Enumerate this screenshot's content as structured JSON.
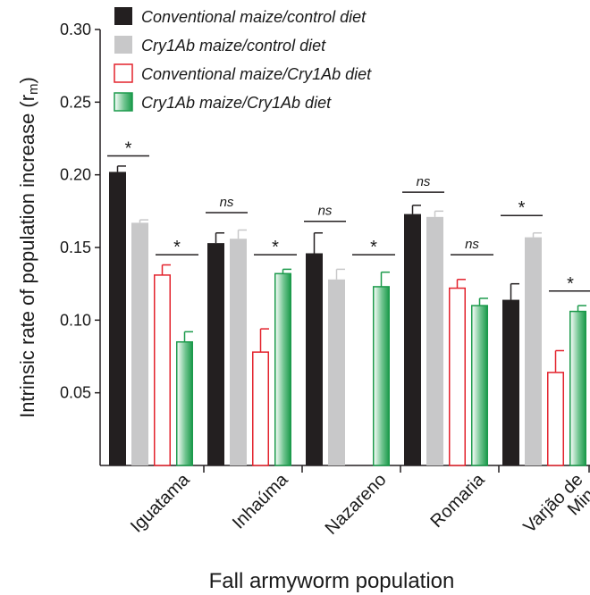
{
  "chart_data": {
    "type": "bar",
    "xlabel": "Fall armyworm population",
    "ylabel_main": "Intrinsic rate of population increase (r",
    "ylabel_sub": "m",
    "ylabel_close": ")",
    "ylim": [
      0,
      0.3
    ],
    "yticks": [
      "0.05",
      "0.10",
      "0.15",
      "0.20",
      "0.25",
      "0.30"
    ],
    "ytick_values": [
      0.05,
      0.1,
      0.15,
      0.2,
      0.25,
      0.3
    ],
    "grid": false,
    "legend_position": "top",
    "categories": [
      {
        "lines": [
          "Iguatama"
        ]
      },
      {
        "lines": [
          "Inhaúma"
        ]
      },
      {
        "lines": [
          "Nazareno"
        ]
      },
      {
        "lines": [
          "Romaria"
        ]
      },
      {
        "lines": [
          "Varjão de",
          "Minas"
        ]
      }
    ],
    "series": [
      {
        "name": "Conventional maize/control diet",
        "style": "solid",
        "color": "#231f20",
        "values": [
          0.202,
          0.153,
          0.146,
          0.173,
          0.114
        ],
        "errors": [
          0.004,
          0.007,
          0.014,
          0.006,
          0.011
        ]
      },
      {
        "name": "Cry1Ab maize/control diet",
        "style": "solid",
        "color": "#c8c8c9",
        "values": [
          0.167,
          0.156,
          0.128,
          0.171,
          0.157
        ],
        "errors": [
          0.002,
          0.006,
          0.007,
          0.004,
          0.003
        ]
      },
      {
        "name": "Conventional maize/Cry1Ab diet",
        "style": "outline",
        "color": "#e3222c",
        "values": [
          0.131,
          0.078,
          0.0,
          0.122,
          0.064
        ],
        "errors": [
          0.007,
          0.016,
          0.0,
          0.006,
          0.015
        ]
      },
      {
        "name": "Cry1Ab maize/Cry1Ab diet",
        "style": "gradient",
        "color": "#1b9a4b",
        "values": [
          0.085,
          0.132,
          0.123,
          0.11,
          0.106
        ],
        "errors": [
          0.007,
          0.003,
          0.01,
          0.005,
          0.004
        ]
      }
    ],
    "significance": [
      {
        "category": 0,
        "pair": "control",
        "label": "*",
        "y": 0.213
      },
      {
        "category": 0,
        "pair": "cry1ab",
        "label": "*",
        "y": 0.145
      },
      {
        "category": 1,
        "pair": "control",
        "label": "ns",
        "y": 0.174
      },
      {
        "category": 1,
        "pair": "cry1ab",
        "label": "*",
        "y": 0.145
      },
      {
        "category": 2,
        "pair": "control",
        "label": "ns",
        "y": 0.168
      },
      {
        "category": 2,
        "pair": "cry1ab",
        "label": "*",
        "y": 0.145
      },
      {
        "category": 3,
        "pair": "control",
        "label": "ns",
        "y": 0.188
      },
      {
        "category": 3,
        "pair": "cry1ab",
        "label": "ns",
        "y": 0.145
      },
      {
        "category": 4,
        "pair": "control",
        "label": "*",
        "y": 0.172
      },
      {
        "category": 4,
        "pair": "cry1ab",
        "label": "*",
        "y": 0.12
      }
    ]
  }
}
